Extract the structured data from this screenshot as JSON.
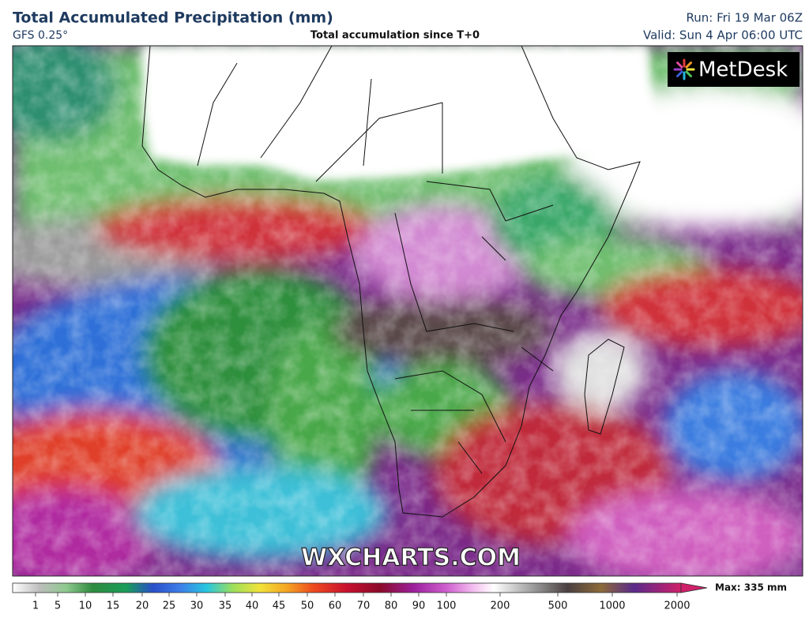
{
  "header": {
    "title": "Total Accumulated Precipitation (mm)",
    "model": "GFS 0.25°",
    "subtitle": "Total accumulation since T+0",
    "run": "Run: Fri 19 Mar 06Z",
    "valid": "Valid: Sun 4 Apr 06:00 UTC"
  },
  "map": {
    "logo": "MetDesk",
    "watermark": "WXCHARTS.COM"
  },
  "legend": {
    "ticks": [
      1,
      5,
      10,
      15,
      20,
      25,
      30,
      35,
      40,
      45,
      50,
      60,
      70,
      80,
      90,
      100,
      200,
      500,
      1000,
      2000
    ],
    "max_label": "Max: 335 mm"
  }
}
